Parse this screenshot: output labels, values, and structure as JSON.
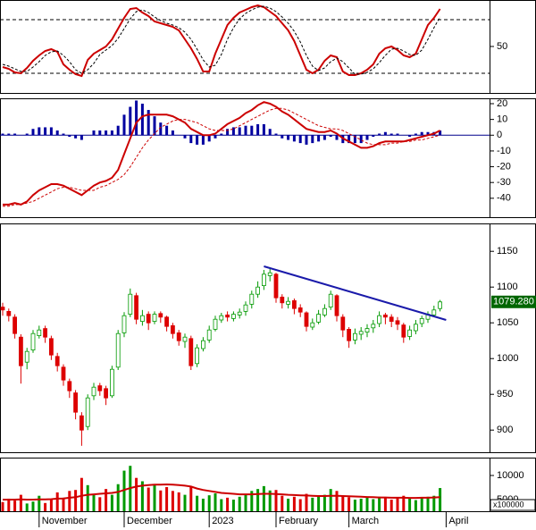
{
  "chart_data": [
    {
      "type": "line",
      "ylim": [
        -2,
        102
      ],
      "yticks": [
        50
      ],
      "levels": [
        20,
        80
      ],
      "series": [
        {
          "color": "#cc0000",
          "values": [
            27,
            25,
            21,
            20,
            26,
            34,
            40,
            45,
            47,
            44,
            30,
            24,
            19,
            17,
            35,
            42,
            46,
            50,
            58,
            70,
            82,
            92,
            93,
            88,
            84,
            78,
            76,
            74,
            72,
            68,
            58,
            48,
            36,
            22,
            22,
            42,
            58,
            74,
            82,
            88,
            91,
            94,
            96,
            94,
            89,
            84,
            76,
            68,
            56,
            40,
            24,
            20,
            24,
            34,
            40,
            38,
            22,
            18,
            18,
            20,
            24,
            30,
            42,
            48,
            50,
            46,
            40,
            38,
            42,
            58,
            74,
            82,
            92,
            null
          ]
        },
        {
          "color": "#000000",
          "dash": true,
          "values": [
            30,
            28,
            25,
            22,
            22,
            27,
            33,
            40,
            44,
            45,
            40,
            33,
            24,
            20,
            24,
            31,
            41,
            46,
            51,
            59,
            70,
            81,
            89,
            91,
            88,
            83,
            79,
            76,
            74,
            71,
            66,
            58,
            47,
            35,
            27,
            29,
            41,
            58,
            71,
            81,
            87,
            91,
            94,
            95,
            93,
            89,
            83,
            76,
            67,
            55,
            40,
            28,
            23,
            26,
            33,
            37,
            33,
            26,
            19,
            19,
            21,
            25,
            32,
            40,
            47,
            48,
            45,
            41,
            40,
            46,
            58,
            71,
            83,
            null
          ]
        }
      ]
    },
    {
      "type": "line",
      "ylim": [
        -52,
        23.4
      ],
      "yticks": [
        20,
        10,
        0,
        -10,
        -20,
        -30,
        -40
      ],
      "zero_line": true,
      "series": [
        {
          "kind": "bar",
          "color": "#0000a0",
          "values": [
            1,
            1,
            1,
            0,
            1,
            4,
            5,
            5,
            5,
            3,
            1,
            -1,
            -2,
            -3,
            0,
            3,
            3,
            3,
            3,
            6,
            13,
            18,
            22,
            20,
            16,
            12,
            8,
            6,
            3,
            0,
            -2,
            -5,
            -6,
            -6,
            -4,
            -2,
            1,
            4,
            5,
            5,
            6,
            6,
            7,
            7,
            4,
            1,
            -2,
            -3,
            -4,
            -5,
            -6,
            -5,
            -4,
            -3,
            -1,
            -3,
            -5,
            -5,
            -5,
            -5,
            -3,
            -1,
            1,
            2,
            1,
            1,
            0,
            -1,
            1,
            2,
            2,
            2,
            3,
            null
          ]
        },
        {
          "color": "#cc0000",
          "values": [
            -44,
            -44,
            -43,
            -44,
            -42,
            -38,
            -35,
            -33,
            -31,
            -31,
            -32,
            -34,
            -36,
            -38,
            -35,
            -32,
            -30,
            -29,
            -27,
            -22,
            -12,
            -2,
            8,
            12,
            13,
            13,
            13,
            13,
            12,
            10,
            8,
            4,
            2,
            0,
            0,
            1,
            4,
            7,
            9,
            11,
            14,
            16,
            19,
            21,
            20,
            18,
            15,
            13,
            10,
            7,
            4,
            3,
            2,
            2,
            3,
            1,
            -2,
            -4,
            -6,
            -8,
            -8,
            -7,
            -5,
            -4,
            -4,
            -4,
            -4,
            -3,
            -2,
            -1,
            0,
            1,
            3,
            null
          ]
        },
        {
          "color": "#cc0000",
          "dash": true,
          "values": [
            -45,
            -45,
            -44,
            -44,
            -43,
            -42,
            -40,
            -38,
            -36,
            -34,
            -33,
            -33,
            -34,
            -35,
            -35,
            -35,
            -33,
            -32,
            -30,
            -28,
            -25,
            -20,
            -14,
            -8,
            -3,
            1,
            5,
            7,
            9,
            10,
            10,
            9,
            8,
            6,
            4,
            3,
            3,
            3,
            4,
            6,
            8,
            10,
            12,
            14,
            16,
            17,
            17,
            16,
            14,
            12,
            10,
            8,
            6,
            5,
            4,
            4,
            3,
            1,
            -1,
            -3,
            -5,
            -6,
            -6,
            -6,
            -5,
            -5,
            -4,
            -4,
            -3,
            -3,
            -2,
            -1,
            0,
            null
          ]
        }
      ]
    },
    {
      "type": "candlestick",
      "ylim": [
        869,
        1189
      ],
      "yticks": [
        900,
        950,
        1000,
        1050,
        1100,
        1150
      ],
      "up_color": "#009900",
      "down_color": "#dd0000",
      "open": [
        1072,
        1066,
        1058,
        1030,
        995,
        1012,
        1032,
        1042,
        1028,
        1003,
        988,
        968,
        952,
        920,
        905,
        948,
        962,
        958,
        948,
        988,
        1036,
        1062,
        1088,
        1052,
        1062,
        1052,
        1063,
        1058,
        1046,
        1036,
        1024,
        1028,
        993,
        1014,
        1026,
        1041,
        1054,
        1061,
        1056,
        1061,
        1066,
        1076,
        1090,
        1102,
        1116,
        1118,
        1086,
        1076,
        1081,
        1071,
        1064,
        1044,
        1051,
        1061,
        1072,
        1088,
        1058,
        1041,
        1026,
        1034,
        1037,
        1043,
        1049,
        1061,
        1058,
        1053,
        1047,
        1031,
        1039,
        1049,
        1055,
        1061,
        1070,
        null
      ],
      "high": [
        1078,
        1070,
        1062,
        1034,
        1015,
        1040,
        1046,
        1046,
        1032,
        1008,
        992,
        972,
        956,
        925,
        950,
        966,
        966,
        962,
        990,
        1040,
        1065,
        1098,
        1092,
        1068,
        1066,
        1066,
        1066,
        1060,
        1050,
        1040,
        1035,
        1032,
        1020,
        1030,
        1046,
        1060,
        1064,
        1066,
        1066,
        1070,
        1080,
        1095,
        1108,
        1124,
        1126,
        1120,
        1090,
        1086,
        1084,
        1076,
        1066,
        1056,
        1068,
        1076,
        1095,
        1090,
        1062,
        1044,
        1042,
        1044,
        1048,
        1054,
        1066,
        1064,
        1062,
        1058,
        1050,
        1046,
        1054,
        1060,
        1066,
        1074,
        1082,
        null
      ],
      "low": [
        1060,
        1052,
        1028,
        965,
        985,
        1008,
        1028,
        1022,
        998,
        982,
        962,
        945,
        915,
        878,
        900,
        942,
        948,
        935,
        945,
        984,
        1030,
        1058,
        1048,
        1046,
        1040,
        1048,
        1050,
        1038,
        1028,
        1018,
        1015,
        984,
        988,
        1010,
        1022,
        1038,
        1050,
        1052,
        1052,
        1056,
        1060,
        1070,
        1085,
        1096,
        1108,
        1078,
        1070,
        1070,
        1062,
        1058,
        1038,
        1040,
        1048,
        1058,
        1068,
        1052,
        1030,
        1015,
        1020,
        1026,
        1030,
        1036,
        1044,
        1048,
        1044,
        1040,
        1022,
        1026,
        1034,
        1044,
        1050,
        1058,
        1066,
        null
      ],
      "close": [
        1068,
        1060,
        1035,
        990,
        1010,
        1035,
        1040,
        1030,
        1005,
        990,
        970,
        955,
        925,
        900,
        945,
        960,
        955,
        945,
        985,
        1035,
        1060,
        1090,
        1055,
        1060,
        1050,
        1062,
        1058,
        1045,
        1035,
        1025,
        1030,
        990,
        1015,
        1025,
        1040,
        1055,
        1060,
        1058,
        1062,
        1065,
        1075,
        1090,
        1100,
        1118,
        1120,
        1085,
        1078,
        1080,
        1070,
        1065,
        1045,
        1050,
        1062,
        1070,
        1090,
        1060,
        1040,
        1025,
        1035,
        1038,
        1042,
        1048,
        1060,
        1058,
        1052,
        1048,
        1030,
        1040,
        1048,
        1056,
        1062,
        1068,
        1079.28,
        null
      ],
      "trendline": {
        "color": "#1a1aaa",
        "x": [
          43,
          73
        ],
        "values": [
          1129,
          1054
        ]
      },
      "last_label": {
        "value": 1079.28,
        "label": "1079.280",
        "color": "#006600"
      }
    },
    {
      "type": "bar",
      "ylim": [
        2600,
        13700
      ],
      "yticks": [
        5000,
        10000
      ],
      "unit_label": "x100000",
      "up_color": "#009900",
      "down_color": "#dd0000",
      "categories": [
        null,
        null,
        null,
        null,
        null,
        null,
        "November",
        null,
        null,
        null,
        null,
        null,
        null,
        null,
        null,
        null,
        null,
        null,
        null,
        null,
        "December",
        null,
        null,
        null,
        null,
        null,
        null,
        null,
        null,
        null,
        null,
        null,
        null,
        null,
        "2023",
        null,
        null,
        null,
        null,
        null,
        null,
        null,
        null,
        null,
        null,
        "February",
        null,
        null,
        null,
        null,
        null,
        null,
        null,
        null,
        null,
        null,
        null,
        "March",
        null,
        null,
        null,
        null,
        null,
        null,
        null,
        null,
        null,
        null,
        null,
        null,
        null,
        null,
        null,
        "April"
      ],
      "series": [
        {
          "kind": "bar",
          "values": [
            4500,
            5200,
            4800,
            6000,
            4200,
            4600,
            5800,
            4300,
            5200,
            6500,
            5400,
            6800,
            7000,
            9500,
            8000,
            6200,
            5500,
            7200,
            6000,
            8200,
            11000,
            12000,
            9500,
            8800,
            7500,
            8000,
            6900,
            7600,
            6800,
            6500,
            6000,
            7800,
            5800,
            5200,
            5900,
            6300,
            5100,
            5400,
            5000,
            5600,
            6200,
            6800,
            7200,
            7800,
            6900,
            7000,
            5800,
            5200,
            5600,
            5100,
            6200,
            5400,
            5600,
            6000,
            7200,
            6800,
            5800,
            5500,
            5000,
            5200,
            5400,
            5100,
            5600,
            5300,
            5000,
            5400,
            5800,
            5200,
            4900,
            5300,
            5600,
            5800,
            7400,
            null
          ]
        },
        {
          "color": "#cc0000",
          "values": [
            5000,
            5000,
            5000,
            5050,
            5000,
            5000,
            5050,
            5050,
            5100,
            5200,
            5250,
            5400,
            5500,
            5800,
            6000,
            6100,
            6200,
            6300,
            6400,
            6600,
            7000,
            7400,
            7700,
            7900,
            8000,
            8100,
            8100,
            8150,
            8100,
            8000,
            7900,
            7700,
            7300,
            7000,
            6800,
            6600,
            6400,
            6300,
            6200,
            6100,
            6100,
            6100,
            6150,
            6200,
            6200,
            6150,
            6100,
            6000,
            5950,
            5900,
            5850,
            5800,
            5750,
            5750,
            5800,
            5800,
            5750,
            5700,
            5650,
            5600,
            5550,
            5500,
            5450,
            5450,
            5400,
            5400,
            5400,
            5350,
            5350,
            5400,
            5400,
            5450,
            5500,
            null
          ]
        }
      ]
    }
  ]
}
